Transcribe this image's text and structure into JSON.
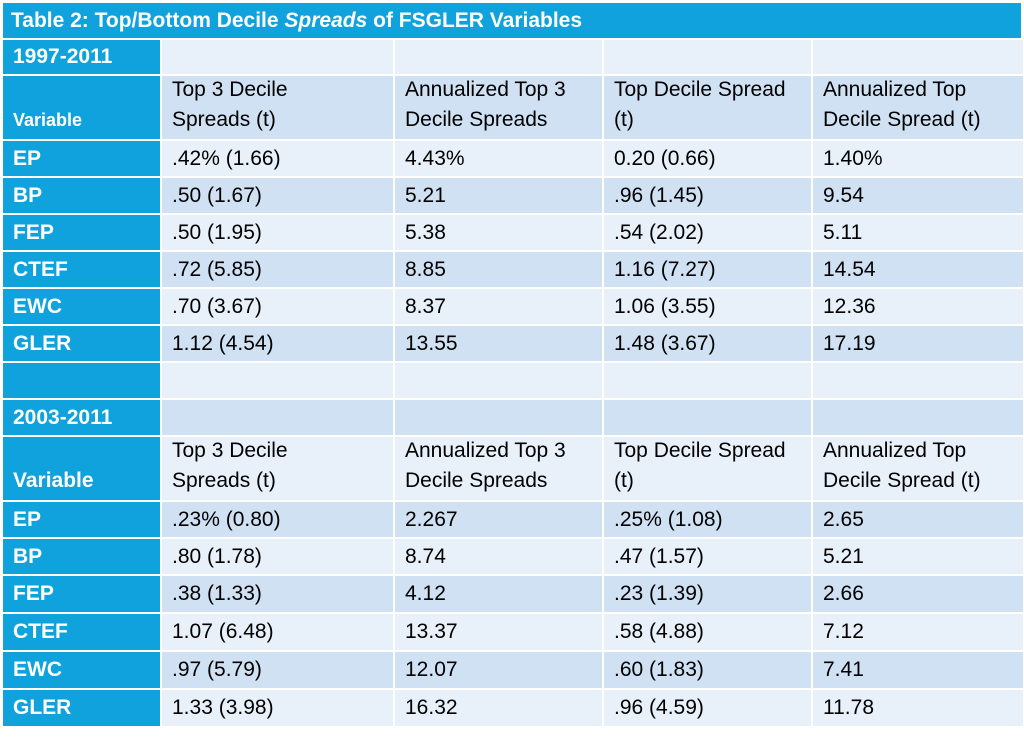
{
  "title": {
    "prefix": "Table 2: Top/Bottom Decile ",
    "italic": "Spreads",
    "suffix": " of FSGLER Variables"
  },
  "columns": [
    "Top 3 Decile Spreads (t)",
    "Annualized Top 3 Decile Spreads",
    "Top Decile Spread (t)",
    "Annualized Top Decile Spread (t)"
  ],
  "sections": [
    {
      "period": "1997-2011",
      "variable_label": "Variable",
      "headers": [
        [
          "Top 3 Decile",
          "Spreads (t)"
        ],
        [
          "Annualized Top 3",
          "Decile Spreads"
        ],
        [
          "Top Decile Spread",
          "(t)"
        ],
        [
          "Annualized Top",
          "Decile Spread (t)"
        ]
      ],
      "rows": [
        {
          "var": "EP",
          "c1": ".42% (1.66)",
          "c2": "4.43%",
          "c3": "0.20 (0.66)",
          "c4": "1.40%"
        },
        {
          "var": "BP",
          "c1": ".50 (1.67)",
          "c2": "5.21",
          "c3": ".96 (1.45)",
          "c4": "9.54"
        },
        {
          "var": "FEP",
          "c1": ".50 (1.95)",
          "c2": "5.38",
          "c3": ".54 (2.02)",
          "c4": "5.11"
        },
        {
          "var": "CTEF",
          "c1": ".72 (5.85)",
          "c2": "8.85",
          "c3": "1.16 (7.27)",
          "c4": "14.54"
        },
        {
          "var": "EWC",
          "c1": ".70 (3.67)",
          "c2": "8.37",
          "c3": "1.06 (3.55)",
          "c4": "12.36"
        },
        {
          "var": "GLER",
          "c1": "1.12 (4.54)",
          "c2": "13.55",
          "c3": "1.48 (3.67)",
          "c4": "17.19"
        }
      ]
    },
    {
      "period": "2003-2011",
      "variable_label": "Variable",
      "headers": [
        [
          "Top 3 Decile",
          "Spreads (t)"
        ],
        [
          "Annualized Top 3",
          "Decile Spreads"
        ],
        [
          "Top Decile Spread",
          "(t)"
        ],
        [
          "Annualized Top",
          "Decile Spread (t)"
        ]
      ],
      "rows": [
        {
          "var": "EP",
          "c1": ".23% (0.80)",
          "c2": "2.267",
          "c3": ".25% (1.08)",
          "c4": "2.65"
        },
        {
          "var": "BP",
          "c1": ".80 (1.78)",
          "c2": "8.74",
          "c3": ".47 (1.57)",
          "c4": "5.21"
        },
        {
          "var": "FEP",
          "c1": ".38 (1.33)",
          "c2": "4.12",
          "c3": ".23 (1.39)",
          "c4": "2.66"
        },
        {
          "var": "CTEF",
          "c1": "1.07 (6.48)",
          "c2": "13.37",
          "c3": ".58 (4.88)",
          "c4": "7.12"
        },
        {
          "var": "EWC",
          "c1": ".97 (5.79)",
          "c2": "12.07",
          "c3": ".60 (1.83)",
          "c4": "7.41"
        },
        {
          "var": "GLER",
          "c1": "1.33 (3.98)",
          "c2": "16.32",
          "c3": ".96 (4.59)",
          "c4": "11.78"
        }
      ]
    }
  ],
  "colors": {
    "header_blue": "#0fa2dd",
    "band_dark": "#cfe1f3",
    "band_light": "#e8f0f9"
  }
}
